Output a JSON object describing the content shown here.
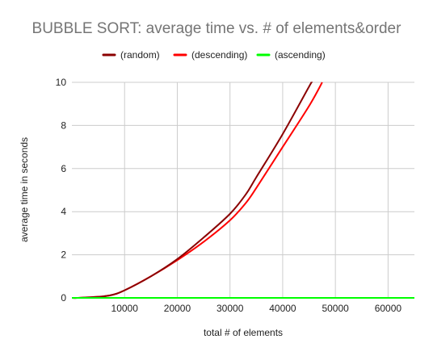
{
  "chart_data": {
    "type": "line",
    "title": "BUBBLE SORT: average time vs. # of elements&order",
    "xlabel": "total # of elements",
    "ylabel": "average time in seconds",
    "xlim": [
      0,
      65000
    ],
    "ylim": [
      0,
      10
    ],
    "x_ticks": [
      10000,
      20000,
      30000,
      40000,
      50000,
      60000
    ],
    "y_ticks": [
      0,
      2,
      4,
      6,
      8,
      10
    ],
    "grid": true,
    "legend_position": "top",
    "series": [
      {
        "name": "(random)",
        "color": "#8b0000",
        "x": [
          0,
          1000,
          5000,
          7500,
          10000,
          15000,
          20000,
          25000,
          30000,
          33000,
          35000,
          40000,
          45000,
          45500
        ],
        "y": [
          0,
          0.0,
          0.05,
          0.13,
          0.35,
          1.0,
          1.8,
          2.8,
          3.9,
          4.8,
          5.6,
          7.6,
          9.8,
          10.0
        ]
      },
      {
        "name": "(descending)",
        "color": "#ff0000",
        "x": [
          0,
          1000,
          5000,
          7500,
          10000,
          15000,
          20000,
          25000,
          30000,
          33000,
          35000,
          40000,
          45000,
          47500
        ],
        "y": [
          0,
          0.0,
          0.05,
          0.13,
          0.35,
          1.0,
          1.75,
          2.6,
          3.6,
          4.4,
          5.1,
          7.0,
          8.9,
          10.0
        ]
      },
      {
        "name": "(ascending)",
        "color": "#00ff00",
        "x": [
          0,
          65000
        ],
        "y": [
          0,
          0
        ]
      }
    ]
  }
}
